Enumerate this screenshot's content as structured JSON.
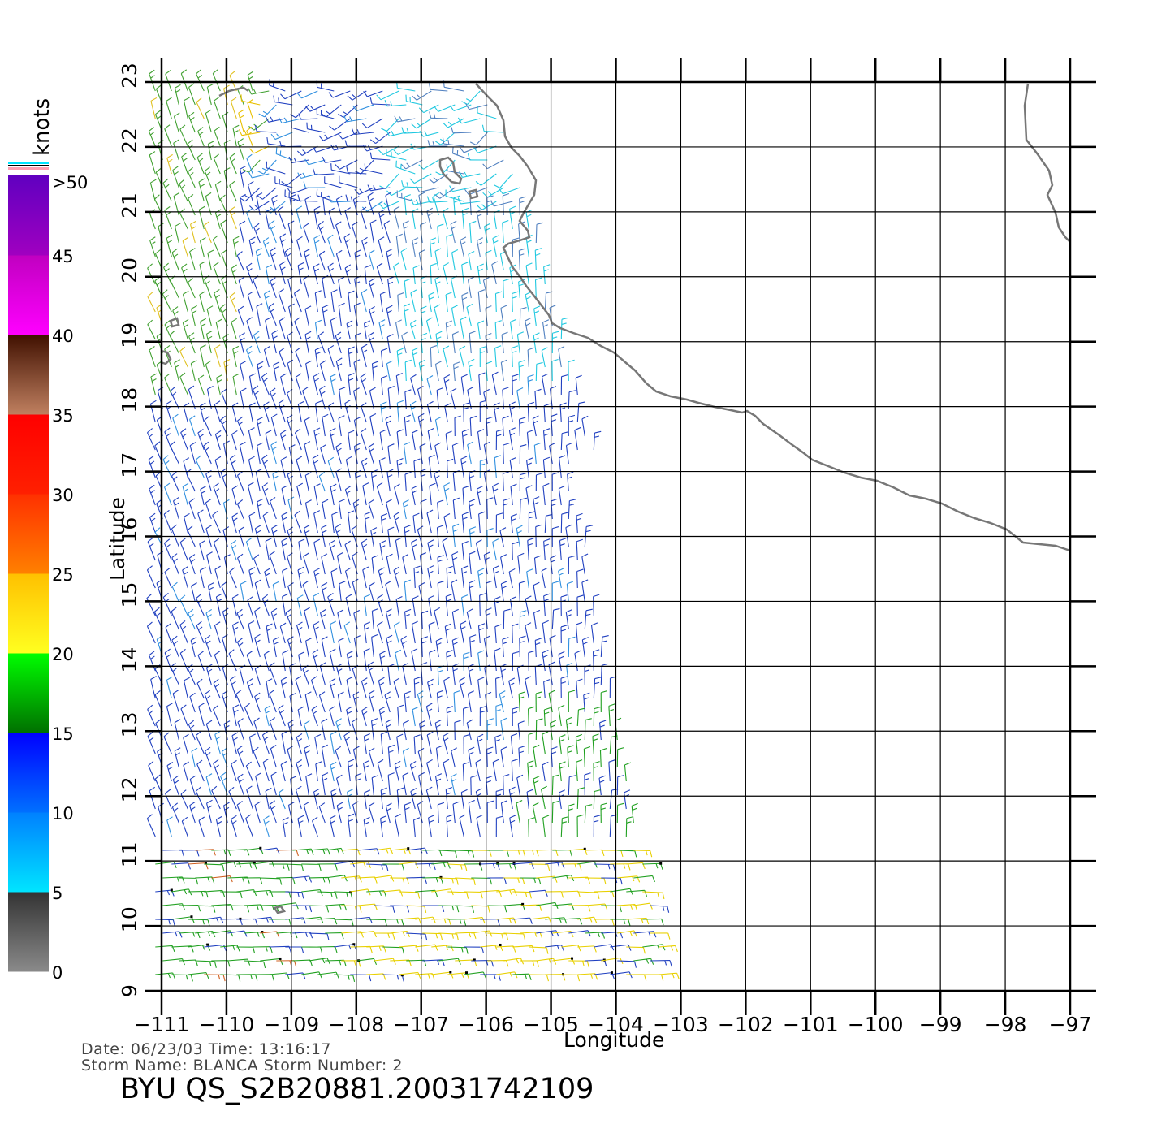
{
  "map": {
    "lon_range": [
      -111,
      -97
    ],
    "lat_range": [
      9,
      23
    ],
    "xlabel": "Longitude",
    "ylabel": "Latitude",
    "lon_ticks": [
      "−111",
      "−110",
      "−109",
      "−108",
      "−107",
      "−106",
      "−105",
      "−104",
      "−103",
      "−102",
      "−101",
      "−100",
      "−99",
      "−98",
      "−97"
    ],
    "lat_ticks": [
      "9",
      "10",
      "11",
      "12",
      "13",
      "14",
      "15",
      "16",
      "17",
      "18",
      "19",
      "20",
      "21",
      "22",
      "23"
    ],
    "grid": true,
    "coastline_color": "#777777"
  },
  "colorbar": {
    "unit": "knots",
    "labels": [
      "0",
      "5",
      "10",
      "15",
      "20",
      "25",
      "30",
      "35",
      "40",
      "45",
      ">50"
    ],
    "bands": [
      {
        "from": 0,
        "to": 5,
        "colors": [
          "#8a8a8a",
          "#333333"
        ]
      },
      {
        "from": 5,
        "to": 10,
        "colors": [
          "#00e5ff",
          "#0080ff"
        ]
      },
      {
        "from": 10,
        "to": 15,
        "colors": [
          "#0070ff",
          "#0000ff"
        ]
      },
      {
        "from": 15,
        "to": 20,
        "colors": [
          "#007000",
          "#00ff00"
        ]
      },
      {
        "from": 20,
        "to": 25,
        "colors": [
          "#ffff20",
          "#ffc000"
        ]
      },
      {
        "from": 25,
        "to": 30,
        "colors": [
          "#ff8000",
          "#ff3000"
        ]
      },
      {
        "from": 30,
        "to": 35,
        "colors": [
          "#ff2000",
          "#ff0000"
        ]
      },
      {
        "from": 35,
        "to": 40,
        "colors": [
          "#c08060",
          "#401000"
        ]
      },
      {
        "from": 40,
        "to": 45,
        "colors": [
          "#ff00ff",
          "#c000c0"
        ]
      },
      {
        "from": 45,
        "to": 50,
        "colors": [
          "#a000c0",
          "#6000c0"
        ]
      }
    ]
  },
  "info": {
    "date_line": "Date: 06/23/03   Time: 13:16:17",
    "storm_line": "Storm  Name: BLANCA   Storm  Number: 2",
    "title": "BYU  QS_S2B20881.20031742109"
  }
}
